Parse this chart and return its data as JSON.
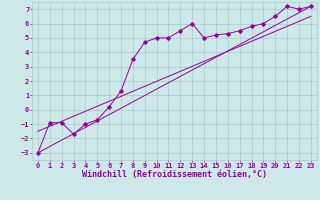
{
  "xlabel": "Windchill (Refroidissement éolien,°C)",
  "background_color": "#cce8e8",
  "grid_color": "#aacccc",
  "line_color": "#990099",
  "xlim": [
    -0.5,
    23.5
  ],
  "ylim": [
    -3.5,
    7.5
  ],
  "xticks": [
    0,
    1,
    2,
    3,
    4,
    5,
    6,
    7,
    8,
    9,
    10,
    11,
    12,
    13,
    14,
    15,
    16,
    17,
    18,
    19,
    20,
    21,
    22,
    23
  ],
  "yticks": [
    -3,
    -2,
    -1,
    0,
    1,
    2,
    3,
    4,
    5,
    6,
    7
  ],
  "series1_x": [
    0,
    1,
    2,
    3,
    4,
    5,
    6,
    7,
    8,
    9,
    10,
    11,
    12,
    13,
    14,
    15,
    16,
    17,
    18,
    19,
    20,
    21,
    22,
    23
  ],
  "series1_y": [
    -3.0,
    -0.9,
    -0.9,
    -1.7,
    -1.0,
    -0.7,
    0.2,
    1.3,
    3.5,
    4.7,
    5.0,
    5.0,
    5.5,
    6.0,
    5.0,
    5.2,
    5.3,
    5.5,
    5.8,
    6.0,
    6.5,
    7.2,
    7.0,
    7.2
  ],
  "series2_x": [
    0,
    23
  ],
  "series2_y": [
    -3.0,
    7.2
  ],
  "series3_x": [
    0,
    23
  ],
  "series3_y": [
    -1.5,
    6.5
  ],
  "tick_fontsize": 5,
  "xlabel_fontsize": 6
}
